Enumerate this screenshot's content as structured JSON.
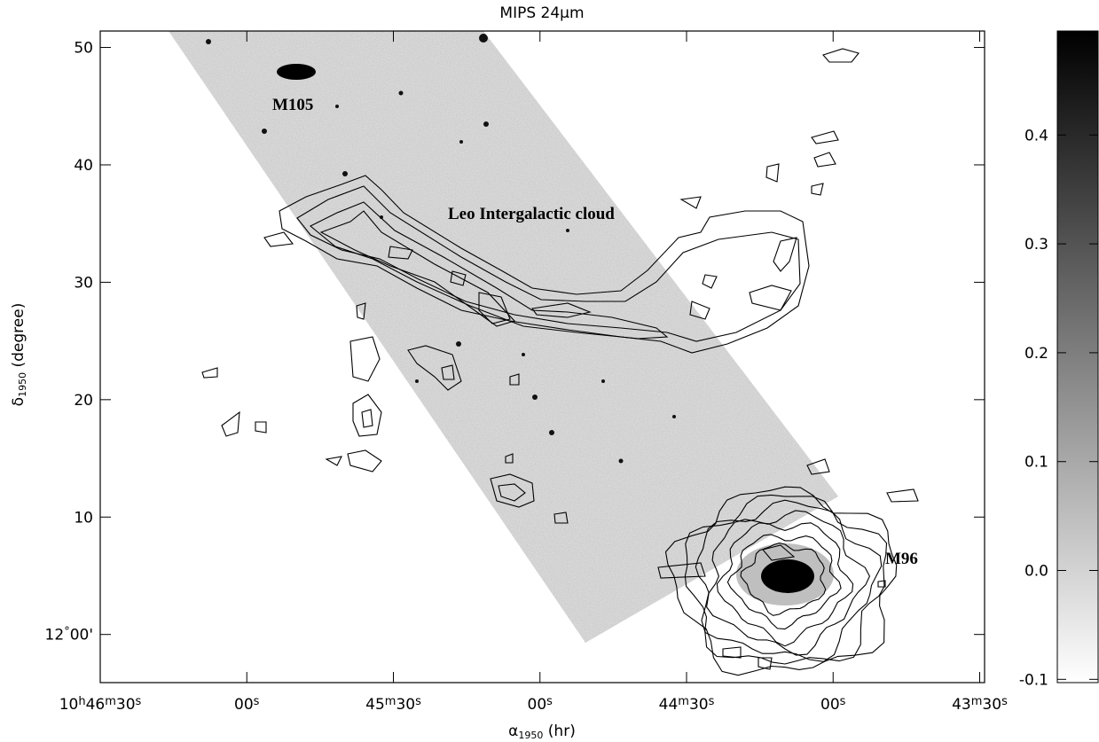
{
  "chart_data": {
    "type": "image",
    "title": "MIPS 24μm",
    "x_label": "α1950 (hr)",
    "y_label": "δ1950 (degree)",
    "xlim": [
      38790,
      38609
    ],
    "xticks": [
      {
        "value": 38790,
        "label": "10h46m30s"
      },
      {
        "value": 38760,
        "label": "00s"
      },
      {
        "value": 38730,
        "label": "45m30s"
      },
      {
        "value": 38700,
        "label": "00s"
      },
      {
        "value": 38670,
        "label": "44m30s"
      },
      {
        "value": 38640,
        "label": "00s"
      },
      {
        "value": 38610,
        "label": "43m30s"
      }
    ],
    "ylim": [
      -4.1,
      51.4
    ],
    "yticks": [
      50,
      40,
      30,
      20,
      10,
      {
        "value": 0,
        "label": "12°00'"
      }
    ],
    "colorbar_lim": [
      -0.103,
      0.4955
    ],
    "colorbar_ticks": [
      0.4,
      0.3,
      0.2,
      0.1,
      {
        "value": 0,
        "label": "0.0"
      },
      -0.1
    ],
    "annotations": [
      "M105",
      "Leo Intergalactic cloud",
      "M96"
    ]
  }
}
